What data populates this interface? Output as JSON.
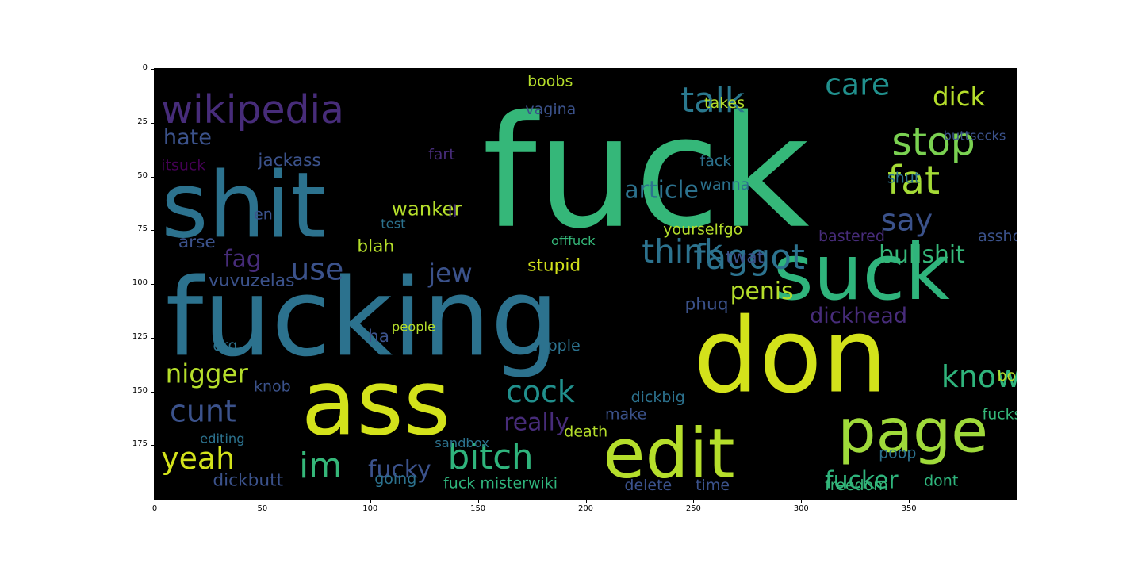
{
  "chart_data": {
    "type": "image",
    "x_ticks": [
      "0",
      "50",
      "100",
      "150",
      "200",
      "250",
      "300",
      "350"
    ],
    "y_ticks": [
      "0",
      "25",
      "50",
      "75",
      "100",
      "125",
      "150",
      "175"
    ],
    "x_tick_values": [
      0,
      50,
      100,
      150,
      200,
      250,
      300,
      350
    ],
    "y_tick_values": [
      0,
      25,
      50,
      75,
      100,
      125,
      150,
      175
    ],
    "xlim": [
      0,
      400
    ],
    "ylim": [
      200,
      0
    ],
    "background": "#000000",
    "palette": [
      "#440154",
      "#3b528b",
      "#21908d",
      "#5dc963",
      "#fde725",
      "#2c728e",
      "#35b779",
      "#b5de2b",
      "#472c7a"
    ],
    "words": [
      {
        "text": "fuck",
        "x": 152,
        "y": 73,
        "size": 72,
        "color": "#35b779"
      },
      {
        "text": "fucking",
        "x": 5,
        "y": 133,
        "size": 50,
        "color": "#2c728e"
      },
      {
        "text": "shit",
        "x": 3,
        "y": 78,
        "size": 42,
        "color": "#2c728e"
      },
      {
        "text": "don",
        "x": 250,
        "y": 150,
        "size": 48,
        "color": "#d3e21b"
      },
      {
        "text": "ass",
        "x": 68,
        "y": 170,
        "size": 42,
        "color": "#d3e21b"
      },
      {
        "text": "suck",
        "x": 287,
        "y": 107,
        "size": 36,
        "color": "#2fb47c"
      },
      {
        "text": "edit",
        "x": 208,
        "y": 190,
        "size": 32,
        "color": "#b5de2b"
      },
      {
        "text": "page",
        "x": 317,
        "y": 178,
        "size": 28,
        "color": "#9fda3a"
      },
      {
        "text": "wikipedia",
        "x": 3,
        "y": 25,
        "size": 18,
        "color": "#472c7a"
      },
      {
        "text": "care",
        "x": 311,
        "y": 12,
        "size": 14,
        "color": "#21908d"
      },
      {
        "text": "talk",
        "x": 244,
        "y": 20,
        "size": 16,
        "color": "#2a788e"
      },
      {
        "text": "stop",
        "x": 342,
        "y": 40,
        "size": 18,
        "color": "#7ad151"
      },
      {
        "text": "fat",
        "x": 340,
        "y": 58,
        "size": 18,
        "color": "#a5db36"
      },
      {
        "text": "dick",
        "x": 361,
        "y": 17,
        "size": 12,
        "color": "#b5de2b"
      },
      {
        "text": "say",
        "x": 337,
        "y": 75,
        "size": 14,
        "color": "#3b528b"
      },
      {
        "text": "hate",
        "x": 4,
        "y": 35,
        "size": 10,
        "color": "#3b528b"
      },
      {
        "text": "itsuck",
        "x": 3,
        "y": 47,
        "size": 7,
        "color": "#440154"
      },
      {
        "text": "jackass",
        "x": 48,
        "y": 45,
        "size": 8,
        "color": "#3b528b"
      },
      {
        "text": "article",
        "x": 218,
        "y": 60,
        "size": 11,
        "color": "#2c728e"
      },
      {
        "text": "think",
        "x": 226,
        "y": 90,
        "size": 15,
        "color": "#2c728e"
      },
      {
        "text": "faggot",
        "x": 250,
        "y": 93,
        "size": 16,
        "color": "#2c728e"
      },
      {
        "text": "bullshit",
        "x": 336,
        "y": 90,
        "size": 11,
        "color": "#35b779"
      },
      {
        "text": "asshole",
        "x": 382,
        "y": 80,
        "size": 7,
        "color": "#3b528b"
      },
      {
        "text": "use",
        "x": 63,
        "y": 98,
        "size": 14,
        "color": "#3b528b"
      },
      {
        "text": "fag",
        "x": 32,
        "y": 92,
        "size": 11,
        "color": "#472c7a"
      },
      {
        "text": "jew",
        "x": 127,
        "y": 99,
        "size": 12,
        "color": "#3b528b"
      },
      {
        "text": "penis",
        "x": 267,
        "y": 107,
        "size": 11,
        "color": "#b5de2b"
      },
      {
        "text": "cunt",
        "x": 7,
        "y": 164,
        "size": 14,
        "color": "#3b528b"
      },
      {
        "text": "nigger",
        "x": 5,
        "y": 146,
        "size": 12,
        "color": "#b5de2b"
      },
      {
        "text": "yeah",
        "x": 3,
        "y": 186,
        "size": 14,
        "color": "#d3e21b"
      },
      {
        "text": "bitch",
        "x": 136,
        "y": 186,
        "size": 16,
        "color": "#2fb47c"
      },
      {
        "text": "cock",
        "x": 163,
        "y": 155,
        "size": 14,
        "color": "#21908d"
      },
      {
        "text": "know",
        "x": 365,
        "y": 148,
        "size": 14,
        "color": "#2fb47c"
      },
      {
        "text": "fucker",
        "x": 311,
        "y": 195,
        "size": 11,
        "color": "#2fb47c"
      },
      {
        "text": "im",
        "x": 67,
        "y": 190,
        "size": 16,
        "color": "#35b779"
      },
      {
        "text": "fucky",
        "x": 99,
        "y": 190,
        "size": 11,
        "color": "#3b528b"
      },
      {
        "text": "really",
        "x": 162,
        "y": 168,
        "size": 11,
        "color": "#472c7a"
      },
      {
        "text": "boobs",
        "x": 173,
        "y": 8,
        "size": 7,
        "color": "#b5de2b"
      },
      {
        "text": "takes",
        "x": 255,
        "y": 18,
        "size": 7,
        "color": "#b5de2b"
      },
      {
        "text": "buttsecks",
        "x": 366,
        "y": 33,
        "size": 6,
        "color": "#3b528b"
      },
      {
        "text": "vagina",
        "x": 172,
        "y": 21,
        "size": 7,
        "color": "#3b528b"
      },
      {
        "text": "yourselfgo",
        "x": 236,
        "y": 77,
        "size": 7,
        "color": "#b5de2b"
      },
      {
        "text": "fack",
        "x": 253,
        "y": 45,
        "size": 7,
        "color": "#2c728e"
      },
      {
        "text": "wanna",
        "x": 253,
        "y": 56,
        "size": 7,
        "color": "#2c728e"
      },
      {
        "text": "shut",
        "x": 340,
        "y": 53,
        "size": 7,
        "color": "#2c728e"
      },
      {
        "text": "offfuck",
        "x": 184,
        "y": 82,
        "size": 6,
        "color": "#35b779"
      },
      {
        "text": "wanker",
        "x": 110,
        "y": 68,
        "size": 9,
        "color": "#b5de2b"
      },
      {
        "text": "fart",
        "x": 127,
        "y": 42,
        "size": 7,
        "color": "#472c7a"
      },
      {
        "text": "test",
        "x": 105,
        "y": 74,
        "size": 6,
        "color": "#2c728e"
      },
      {
        "text": "ll",
        "x": 136,
        "y": 69,
        "size": 8,
        "color": "#472c7a"
      },
      {
        "text": "en",
        "x": 46,
        "y": 70,
        "size": 7,
        "color": "#3b528b"
      },
      {
        "text": "arse",
        "x": 11,
        "y": 83,
        "size": 8,
        "color": "#3b528b"
      },
      {
        "text": "blah",
        "x": 94,
        "y": 85,
        "size": 8,
        "color": "#b5de2b"
      },
      {
        "text": "twat",
        "x": 265,
        "y": 90,
        "size": 8,
        "color": "#3b528b"
      },
      {
        "text": "bastered",
        "x": 308,
        "y": 80,
        "size": 7,
        "color": "#472c7a"
      },
      {
        "text": "stupid",
        "x": 173,
        "y": 94,
        "size": 8,
        "color": "#d3e21b"
      },
      {
        "text": "vuvuzelas",
        "x": 25,
        "y": 101,
        "size": 8,
        "color": "#3b528b"
      },
      {
        "text": "phuq",
        "x": 246,
        "y": 112,
        "size": 8,
        "color": "#3b528b"
      },
      {
        "text": "dickhead",
        "x": 304,
        "y": 118,
        "size": 10,
        "color": "#472c7a"
      },
      {
        "text": "org",
        "x": 27,
        "y": 131,
        "size": 7,
        "color": "#2c728e"
      },
      {
        "text": "ha",
        "x": 99,
        "y": 127,
        "size": 8,
        "color": "#3b528b"
      },
      {
        "text": "nipple",
        "x": 176,
        "y": 131,
        "size": 7,
        "color": "#2c728e"
      },
      {
        "text": "people",
        "x": 110,
        "y": 122,
        "size": 6,
        "color": "#b5de2b"
      },
      {
        "text": "knob",
        "x": 46,
        "y": 150,
        "size": 7,
        "color": "#3b528b"
      },
      {
        "text": "dickbig",
        "x": 221,
        "y": 155,
        "size": 7,
        "color": "#2c728e"
      },
      {
        "text": "make",
        "x": 209,
        "y": 163,
        "size": 7,
        "color": "#3b528b"
      },
      {
        "text": "sandbox",
        "x": 130,
        "y": 176,
        "size": 6,
        "color": "#2c728e"
      },
      {
        "text": "death",
        "x": 190,
        "y": 171,
        "size": 7,
        "color": "#b5de2b"
      },
      {
        "text": "editing",
        "x": 21,
        "y": 174,
        "size": 6,
        "color": "#2c728e"
      },
      {
        "text": "fucksex",
        "x": 384,
        "y": 163,
        "size": 7,
        "color": "#35b779"
      },
      {
        "text": "bollocks",
        "x": 391,
        "y": 145,
        "size": 7,
        "color": "#b5de2b"
      },
      {
        "text": "freedom",
        "x": 311,
        "y": 196,
        "size": 7,
        "color": "#35b779"
      },
      {
        "text": "poop",
        "x": 336,
        "y": 181,
        "size": 7,
        "color": "#2c728e"
      },
      {
        "text": "dont",
        "x": 357,
        "y": 194,
        "size": 7,
        "color": "#2fb47c"
      },
      {
        "text": "dickbutt",
        "x": 27,
        "y": 194,
        "size": 8,
        "color": "#3b528b"
      },
      {
        "text": "going",
        "x": 102,
        "y": 193,
        "size": 7,
        "color": "#2c728e"
      },
      {
        "text": "fuck misterwiki",
        "x": 134,
        "y": 195,
        "size": 7,
        "color": "#2fb47c"
      },
      {
        "text": "delete",
        "x": 218,
        "y": 196,
        "size": 7,
        "color": "#3b528b"
      },
      {
        "text": "time",
        "x": 251,
        "y": 196,
        "size": 7,
        "color": "#3b528b"
      }
    ]
  }
}
